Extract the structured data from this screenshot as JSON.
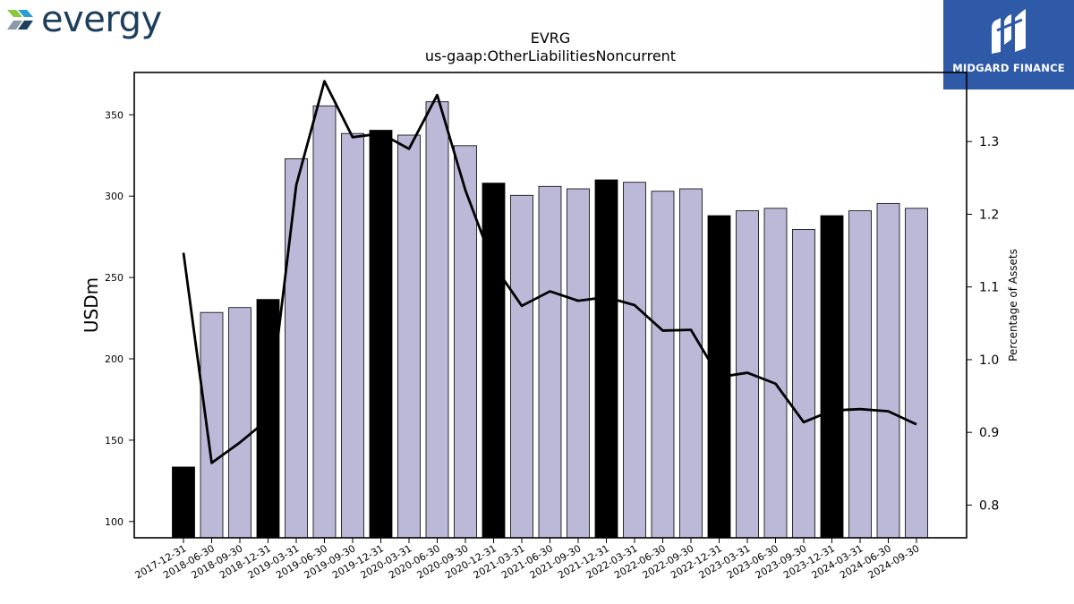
{
  "branding": {
    "company_wordmark": "evergy",
    "sponsor_name": "MIDGARD FINANCE",
    "colors": {
      "evergy_green": "#8cc63f",
      "evergy_navy": "#1d3e5c",
      "sponsor_blue": "#2f5aa8"
    }
  },
  "chart_data": {
    "type": "bar",
    "title": "EVRG",
    "subtitle": "us-gaap:OtherLiabilitiesNoncurrent",
    "ylabel": "USDm",
    "y2label": "Percentage of Assets",
    "ylim": [
      90,
      376
    ],
    "y2lim": [
      0.755,
      1.395
    ],
    "yticks": [
      100,
      150,
      200,
      250,
      300,
      350
    ],
    "y2ticks": [
      0.8,
      0.9,
      1.0,
      1.1,
      1.2,
      1.3
    ],
    "categories": [
      "2017-12-31",
      "2018-06-30",
      "2018-09-30",
      "2018-12-31",
      "2019-03-31",
      "2019-06-30",
      "2019-09-30",
      "2019-12-31",
      "2020-03-31",
      "2020-06-30",
      "2020-09-30",
      "2020-12-31",
      "2021-03-31",
      "2021-06-30",
      "2021-09-30",
      "2021-12-31",
      "2022-03-31",
      "2022-06-30",
      "2022-09-30",
      "2022-12-31",
      "2023-03-31",
      "2023-06-30",
      "2023-09-30",
      "2023-12-31",
      "2024-03-31",
      "2024-06-30",
      "2024-09-30"
    ],
    "series": [
      {
        "type": "bar",
        "values": [
          133.5,
          228.5,
          231.5,
          236.5,
          323.0,
          355.5,
          338.5,
          340.5,
          337.5,
          358.0,
          331.0,
          308.0,
          300.5,
          306.0,
          304.5,
          310.0,
          308.5,
          303.0,
          304.5,
          288.0,
          291.0,
          292.5,
          279.5,
          288.0,
          291.0,
          295.5,
          292.5
        ]
      },
      {
        "type": "line",
        "axis": "right",
        "values": [
          1.147,
          0.858,
          0.886,
          0.918,
          1.24,
          1.383,
          1.306,
          1.311,
          1.29,
          1.364,
          1.233,
          1.13,
          1.074,
          1.094,
          1.081,
          1.086,
          1.075,
          1.04,
          1.041,
          0.976,
          0.982,
          0.967,
          0.914,
          0.93,
          0.932,
          0.929,
          0.911
        ]
      }
    ],
    "bar_colors": {
      "year_end": "#000000",
      "interim": "#bcb8d8"
    },
    "line_color": "#000000",
    "grid": false,
    "legend": "none"
  }
}
